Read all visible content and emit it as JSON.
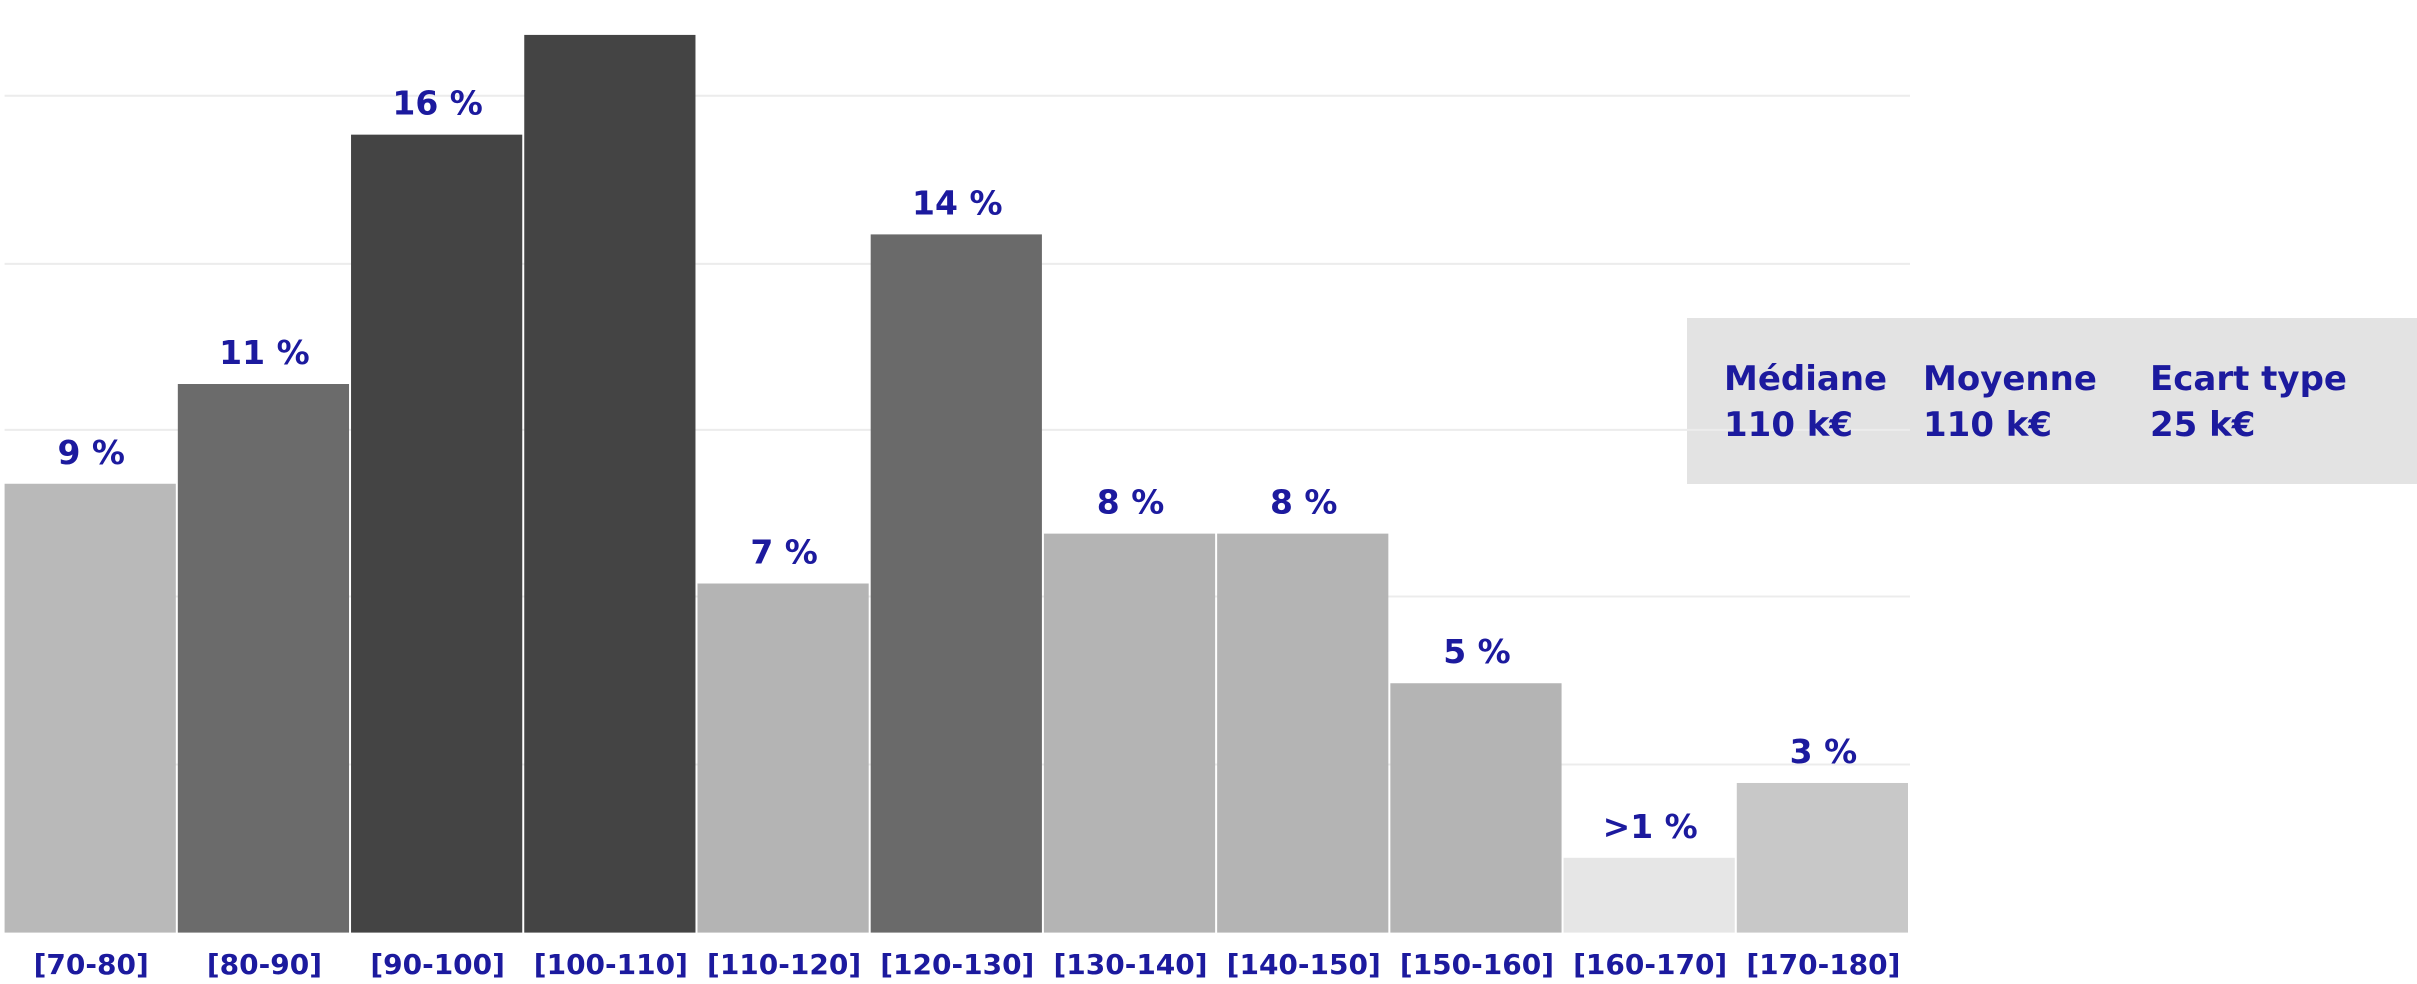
{
  "chart_data": {
    "type": "bar",
    "categories": [
      "[70-80]",
      "[80-90]",
      "[90-100]",
      "[100-110]",
      "[110-120]",
      "[120-130]",
      "[130-140]",
      "[140-150]",
      "[150-160]",
      "[160-170]",
      "[170-180]"
    ],
    "values": [
      9,
      11,
      16,
      18,
      7,
      14,
      8,
      8,
      5,
      1.5,
      3
    ],
    "value_labels": [
      "9 %",
      "11 %",
      "16 %",
      null,
      "7 %",
      "14 %",
      "8 %",
      "8 %",
      "5 %",
      ">1 %",
      "3 %"
    ],
    "colors": [
      "#b9b9b9",
      "#6b6b6b",
      "#444444",
      "#444444",
      "#b4b4b4",
      "#6a6a6a",
      "#b4b4b4",
      "#b4b4b4",
      "#b4b4b4",
      "#e6e6e6",
      "#c8c8c8"
    ],
    "ylim": [
      0,
      18.7
    ],
    "yticks": [
      3.37,
      6.74,
      10.08,
      13.41,
      16.78
    ],
    "grid": true,
    "stats": [
      {
        "label": "Médiane",
        "value": "110 k€"
      },
      {
        "label": "Moyenne",
        "value": "110 k€"
      },
      {
        "label": "Ecart type",
        "value": "25 k€"
      }
    ]
  }
}
